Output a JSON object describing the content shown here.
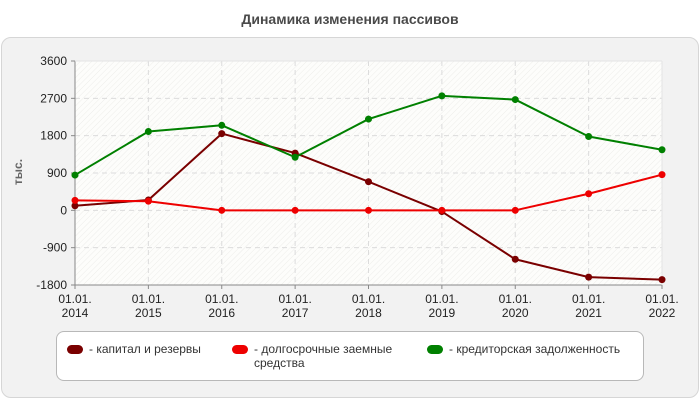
{
  "chart_title": "Динамика изменения пассивов",
  "chart_data": {
    "type": "line",
    "title": "Динамика изменения пассивов",
    "ylabel": "тыс.",
    "xlabel": "",
    "x": [
      "01.01.\n2014",
      "01.01.\n2015",
      "01.01.\n2016",
      "01.01.\n2017",
      "01.01.\n2018",
      "01.01.\n2019",
      "01.01.\n2020",
      "01.01.\n2021",
      "01.01.\n2022"
    ],
    "ylim": [
      -1800,
      3600
    ],
    "yticks": [
      -1800,
      -900,
      0,
      900,
      1800,
      2700,
      3600
    ],
    "grid": true,
    "legend_position": "bottom",
    "series": [
      {
        "name": "капитал и резервы",
        "color": "#7a0000",
        "values": [
          110,
          250,
          1850,
          1380,
          690,
          -30,
          -1180,
          -1610,
          -1670
        ]
      },
      {
        "name": "долгосрочные заемные средства",
        "color": "#ee0000",
        "values": [
          240,
          220,
          0,
          0,
          0,
          0,
          0,
          400,
          860
        ]
      },
      {
        "name": "кредиторская задолженность",
        "color": "#008000",
        "values": [
          850,
          1900,
          2050,
          1280,
          2200,
          2760,
          2670,
          1780,
          1460
        ]
      }
    ]
  },
  "legend": [
    {
      "label": "- капитал и резервы",
      "color": "#7a0000"
    },
    {
      "label": "- долгосрочные заемные\nсредства",
      "color": "#ee0000"
    },
    {
      "label": "- кредиторская задолженность",
      "color": "#008000"
    }
  ]
}
